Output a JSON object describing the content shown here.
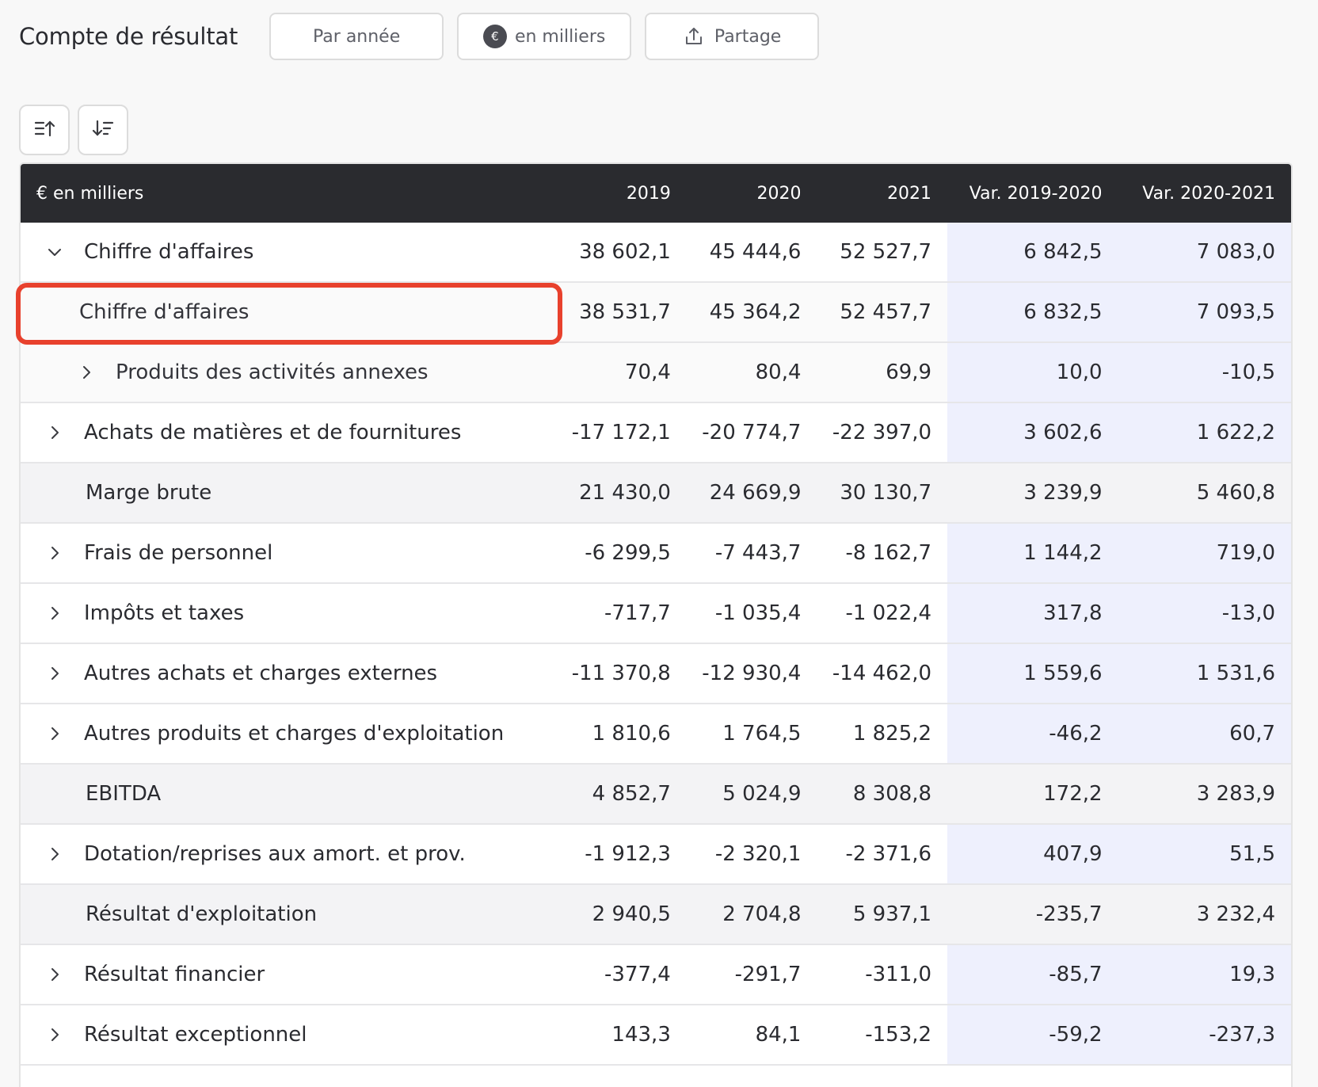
{
  "header": {
    "title": "Compte de résultat",
    "btn_period": "Par année",
    "btn_unit": "en milliers",
    "btn_unit_badge": "€",
    "btn_share": "Partage"
  },
  "sort": {
    "asc_icon": "sort-ascending-icon",
    "desc_icon": "sort-descending-icon"
  },
  "table": {
    "columns": [
      "€ en milliers",
      "2019",
      "2020",
      "2021",
      "Var. 2019-2020",
      "Var. 2020-2021"
    ],
    "rows": [
      {
        "label": "Chiffre d'affaires",
        "values": [
          "38 602,1",
          "45 444,6",
          "52 527,7",
          "6 842,5",
          "7 083,0"
        ]
      },
      {
        "label": "Chiffre d'affaires",
        "values": [
          "38 531,7",
          "45 364,2",
          "52 457,7",
          "6 832,5",
          "7 093,5"
        ]
      },
      {
        "label": "Produits des activités annexes",
        "values": [
          "70,4",
          "80,4",
          "69,9",
          "10,0",
          "-10,5"
        ]
      },
      {
        "label": "Achats de matières et de fournitures",
        "values": [
          "-17 172,1",
          "-20 774,7",
          "-22 397,0",
          "3 602,6",
          "1 622,2"
        ]
      },
      {
        "label": "Marge brute",
        "values": [
          "21 430,0",
          "24 669,9",
          "30 130,7",
          "3 239,9",
          "5 460,8"
        ]
      },
      {
        "label": "Frais de personnel",
        "values": [
          "-6 299,5",
          "-7 443,7",
          "-8 162,7",
          "1 144,2",
          "719,0"
        ]
      },
      {
        "label": "Impôts et taxes",
        "values": [
          "-717,7",
          "-1 035,4",
          "-1 022,4",
          "317,8",
          "-13,0"
        ]
      },
      {
        "label": "Autres achats et charges externes",
        "values": [
          "-11 370,8",
          "-12 930,4",
          "-14 462,0",
          "1 559,6",
          "1 531,6"
        ]
      },
      {
        "label": "Autres produits et charges d'exploitation",
        "values": [
          "1 810,6",
          "1 764,5",
          "1 825,2",
          "-46,2",
          "60,7"
        ]
      },
      {
        "label": "EBITDA",
        "values": [
          "4 852,7",
          "5 024,9",
          "8 308,8",
          "172,2",
          "3 283,9"
        ]
      },
      {
        "label": "Dotation/reprises aux amort. et prov.",
        "values": [
          "-1 912,3",
          "-2 320,1",
          "-2 371,6",
          "407,9",
          "51,5"
        ]
      },
      {
        "label": "Résultat d'exploitation",
        "values": [
          "2 940,5",
          "2 704,8",
          "5 937,1",
          "-235,7",
          "3 232,4"
        ]
      },
      {
        "label": "Résultat financier",
        "values": [
          "-377,4",
          "-291,7",
          "-311,0",
          "-85,7",
          "19,3"
        ]
      },
      {
        "label": "Résultat exceptionnel",
        "values": [
          "143,3",
          "84,1",
          "-153,2",
          "-59,2",
          "-237,3"
        ]
      }
    ]
  },
  "colors": {
    "header_bg": "#2a2b2f",
    "variance_bg": "#eef0fd",
    "total_bg": "#f3f3f5",
    "highlight": "#e8412d"
  }
}
